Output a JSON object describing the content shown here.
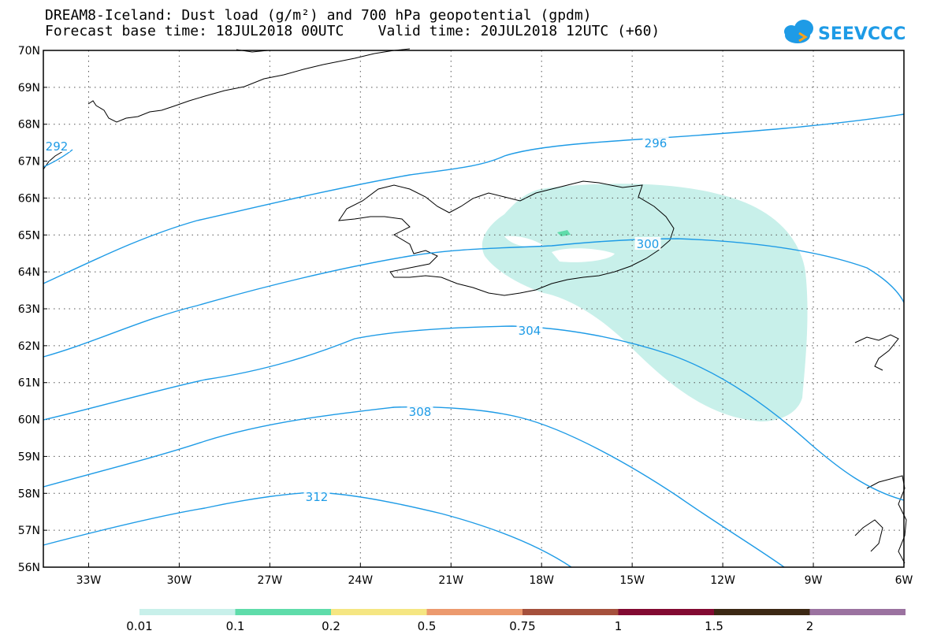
{
  "title_line1": "DREAM8-Iceland: Dust load (g/m²) and 700 hPa geopotential (gpdm)",
  "title_line2": "Forecast base time: 18JUL2018 00UTC    Valid time: 20JUL2018 12UTC (+60)",
  "logo_text": "SEEVCCC",
  "map": {
    "lon_range": [
      -34.5,
      -6
    ],
    "lat_range": [
      56,
      70
    ],
    "lat_labels": [
      "70N",
      "69N",
      "68N",
      "67N",
      "66N",
      "65N",
      "64N",
      "63N",
      "62N",
      "61N",
      "60N",
      "59N",
      "58N",
      "57N",
      "56N"
    ],
    "lon_labels": [
      "33W",
      "30W",
      "27W",
      "24W",
      "21W",
      "18W",
      "15W",
      "12W",
      "9W",
      "6W"
    ],
    "grid": "dotted",
    "contour_color": "#1e9be6",
    "contours": [
      {
        "label": "292",
        "value": 292
      },
      {
        "label": "296",
        "value": 296
      },
      {
        "label": "300",
        "value": 300
      },
      {
        "label": "304",
        "value": 304
      },
      {
        "label": "308",
        "value": 308
      },
      {
        "label": "312",
        "value": 312
      }
    ]
  },
  "colorbar": {
    "colors": [
      "#c8f0ea",
      "#5fdcaa",
      "#f5e682",
      "#ec9a6e",
      "#a5503c",
      "#820a32",
      "#3c2814",
      "#9b72a0"
    ],
    "labels": [
      "0.01",
      "0.1",
      "0.2",
      "0.5",
      "0.75",
      "1",
      "1.5",
      "2"
    ]
  }
}
